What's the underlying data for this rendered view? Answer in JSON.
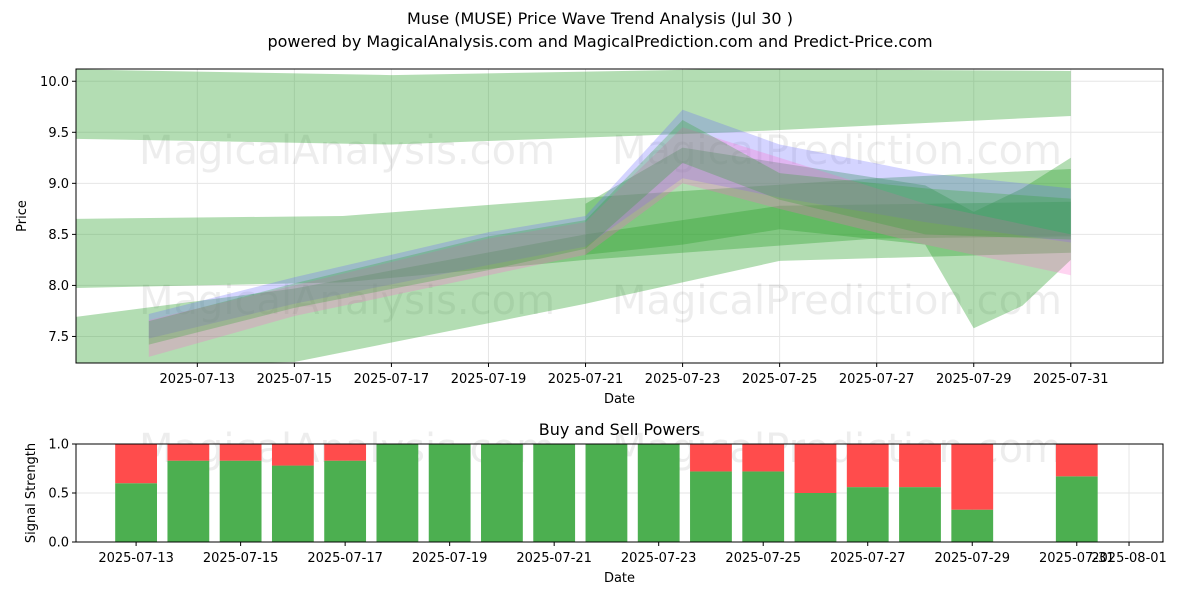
{
  "title_line1": "Muse (MUSE) Price Wave Trend Analysis (Jul 30 )",
  "title_line2": "powered by MagicalAnalysis.com and MagicalPrediction.com and Predict-Price.com",
  "watermarks": [
    "MagicalAnalysis.com",
    "MagicalPrediction.com"
  ],
  "colors": {
    "green": "#2ca02c",
    "blue": "#6666ff",
    "pink": "#ff66cc",
    "buy": "#4caf50",
    "sell": "#ff4c4c"
  },
  "chart_data": [
    {
      "type": "area",
      "title": "",
      "xlabel": "Date",
      "ylabel": "Price",
      "ylim": [
        7.24,
        10.12
      ],
      "x_range": [
        "2025-07-10",
        "2025-08-01"
      ],
      "x_ticks": [
        "2025-07-13",
        "2025-07-15",
        "2025-07-17",
        "2025-07-19",
        "2025-07-21",
        "2025-07-23",
        "2025-07-25",
        "2025-07-27",
        "2025-07-29",
        "2025-07-31"
      ],
      "y_ticks": [
        "7.5",
        "8.0",
        "8.5",
        "9.0",
        "9.5",
        "10.0"
      ],
      "grid": true,
      "series": [
        {
          "color": "green",
          "x": [
            "2025-07-10",
            "2025-07-17",
            "2025-07-24",
            "2025-07-31"
          ],
          "upper": [
            10.12,
            10.06,
            10.12,
            10.1
          ],
          "lower": [
            9.44,
            9.38,
            9.5,
            9.66
          ]
        },
        {
          "color": "green",
          "x": [
            "2025-07-10",
            "2025-07-16",
            "2025-07-21",
            "2025-07-27",
            "2025-07-31"
          ],
          "upper": [
            8.65,
            8.68,
            8.86,
            9.05,
            9.14
          ],
          "lower": [
            7.97,
            8.03,
            8.25,
            8.46,
            8.48
          ]
        },
        {
          "color": "green",
          "x": [
            "2025-07-10",
            "2025-07-15",
            "2025-07-21",
            "2025-07-25",
            "2025-07-31"
          ],
          "upper": [
            7.66,
            7.97,
            8.5,
            8.78,
            8.82
          ],
          "lower": [
            7.2,
            7.25,
            7.82,
            8.24,
            8.32
          ]
        },
        {
          "color": "green",
          "x": [
            "2025-07-21",
            "2025-07-23",
            "2025-07-25",
            "2025-07-28",
            "2025-07-29",
            "2025-07-30",
            "2025-07-31"
          ],
          "upper": [
            8.8,
            9.35,
            9.2,
            8.98,
            8.72,
            8.95,
            9.25
          ],
          "lower": [
            8.3,
            8.4,
            8.55,
            8.4,
            7.58,
            7.8,
            8.25
          ]
        },
        {
          "color": "blue",
          "x": [
            "2025-07-12",
            "2025-07-15",
            "2025-07-19",
            "2025-07-21",
            "2025-07-23",
            "2025-07-25",
            "2025-07-28",
            "2025-07-31"
          ],
          "upper": [
            7.72,
            8.08,
            8.52,
            8.68,
            9.72,
            9.38,
            9.1,
            8.95
          ],
          "lower": [
            7.48,
            7.82,
            8.2,
            8.38,
            9.05,
            8.86,
            8.62,
            8.42
          ]
        },
        {
          "color": "pink",
          "x": [
            "2025-07-12",
            "2025-07-15",
            "2025-07-19",
            "2025-07-21",
            "2025-07-23",
            "2025-07-25",
            "2025-07-28",
            "2025-07-31"
          ],
          "upper": [
            7.66,
            8.0,
            8.46,
            8.62,
            9.55,
            9.25,
            8.8,
            8.5
          ],
          "lower": [
            7.3,
            7.7,
            8.1,
            8.3,
            9.0,
            8.75,
            8.4,
            8.1
          ]
        },
        {
          "color": "green",
          "x": [
            "2025-07-12",
            "2025-07-15",
            "2025-07-19",
            "2025-07-21",
            "2025-07-23",
            "2025-07-25",
            "2025-07-28",
            "2025-07-31"
          ],
          "upper": [
            7.65,
            8.02,
            8.48,
            8.64,
            9.62,
            9.1,
            8.95,
            8.85
          ],
          "lower": [
            7.42,
            7.78,
            8.15,
            8.36,
            9.2,
            8.84,
            8.5,
            8.45
          ]
        }
      ]
    },
    {
      "type": "bar",
      "title": "Buy and Sell Powers",
      "xlabel": "Date",
      "ylabel": "Signal Strength",
      "ylim": [
        0,
        1
      ],
      "x_ticks": [
        "2025-07-13",
        "2025-07-15",
        "2025-07-17",
        "2025-07-19",
        "2025-07-21",
        "2025-07-23",
        "2025-07-25",
        "2025-07-27",
        "2025-07-29",
        "2025-07-31",
        "2025-08-01"
      ],
      "y_ticks": [
        "0.0",
        "0.5",
        "1.0"
      ],
      "grid": true,
      "categories": [
        "2025-07-13",
        "2025-07-14",
        "2025-07-15",
        "2025-07-16",
        "2025-07-17",
        "2025-07-18",
        "2025-07-19",
        "2025-07-20",
        "2025-07-21",
        "2025-07-22",
        "2025-07-23",
        "2025-07-24",
        "2025-07-25",
        "2025-07-26",
        "2025-07-27",
        "2025-07-28",
        "2025-07-29",
        "2025-07-31"
      ],
      "series": [
        {
          "name": "Buy",
          "color": "buy",
          "values": [
            0.6,
            0.83,
            0.83,
            0.78,
            0.83,
            1.0,
            1.0,
            1.0,
            1.0,
            1.0,
            1.0,
            0.72,
            0.72,
            0.5,
            0.56,
            0.56,
            0.33,
            0.67
          ]
        },
        {
          "name": "Sell",
          "color": "sell",
          "values": [
            0.4,
            0.17,
            0.17,
            0.22,
            0.17,
            0.0,
            0.0,
            0.0,
            0.0,
            0.0,
            0.0,
            0.28,
            0.28,
            0.5,
            0.44,
            0.44,
            0.67,
            0.33
          ]
        }
      ]
    }
  ]
}
